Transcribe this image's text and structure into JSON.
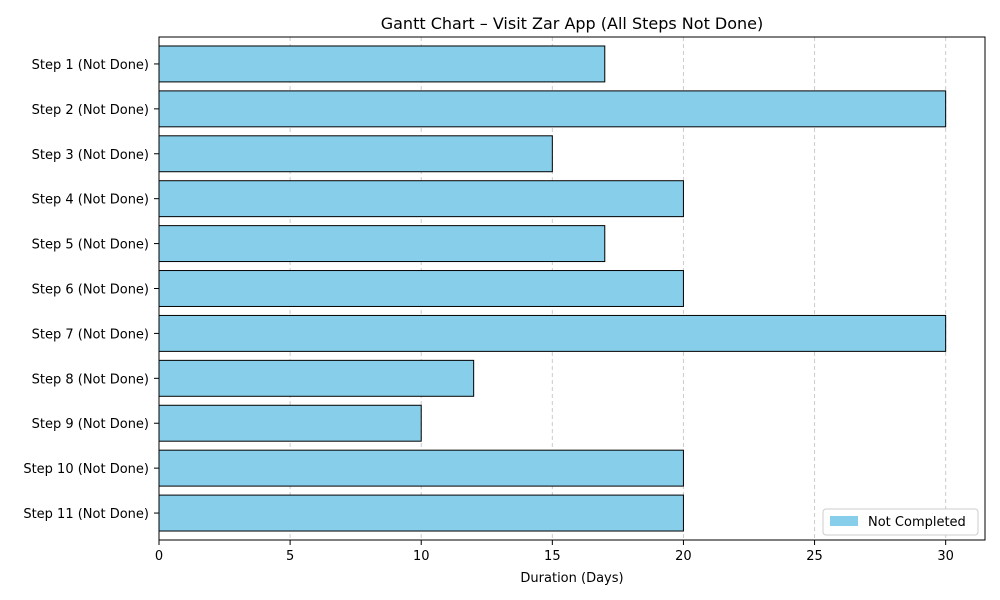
{
  "chart_data": {
    "type": "bar",
    "orientation": "horizontal",
    "title": "Gantt Chart – Visit Zar App (All Steps Not Done)",
    "xlabel": "Duration (Days)",
    "ylabel": "",
    "categories": [
      "Step 1 (Not Done)",
      "Step 2 (Not Done)",
      "Step 3 (Not Done)",
      "Step 4 (Not Done)",
      "Step 5 (Not Done)",
      "Step 6 (Not Done)",
      "Step 7 (Not Done)",
      "Step 8 (Not Done)",
      "Step 9 (Not Done)",
      "Step 10 (Not Done)",
      "Step 11 (Not Done)"
    ],
    "start": [
      0,
      0,
      0,
      0,
      0,
      0,
      0,
      0,
      0,
      0,
      0
    ],
    "values": [
      17,
      30,
      15,
      20,
      17,
      20,
      30,
      12,
      10,
      20,
      20
    ],
    "xlim": [
      0,
      31.5
    ],
    "xticks": [
      0,
      5,
      10,
      15,
      20,
      25,
      30
    ],
    "grid": "x-dashed",
    "legend": {
      "placement": "lower-right",
      "entries": [
        {
          "label": "Not Completed",
          "color": "#87CEEB"
        }
      ]
    },
    "colors": {
      "bar_fill": "#87CEEB",
      "bar_edge": "#000000",
      "grid": "#cccccc"
    }
  }
}
